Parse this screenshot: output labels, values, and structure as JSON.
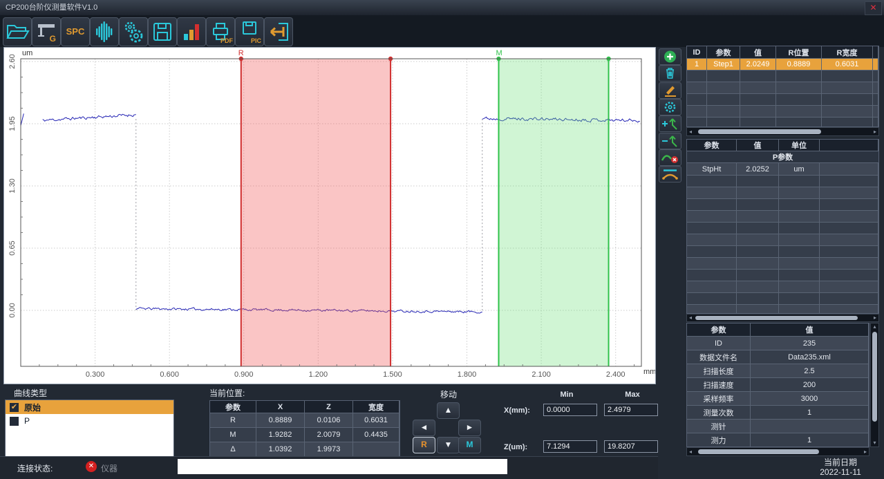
{
  "titlebar": {
    "title": "CP200台阶仪测量软件V1.0"
  },
  "icons": {
    "close": "✕",
    "check": "✔",
    "up": "▲",
    "down": "▼",
    "left": "◄",
    "right": "►",
    "sb_left": "◂",
    "sb_right": "▸",
    "sb_up": "▴",
    "sb_down": "▾",
    "status_fail": "✕"
  },
  "colors": {
    "accent_cyan": "#2bc8da",
    "accent_orange": "#e09a30",
    "highlight_row": "#e8a23c",
    "status_red": "#d42020",
    "curve_blue": "#2424b4",
    "region_r": "#d03030",
    "region_m": "#2fc24a"
  },
  "toolbar": {
    "buttons": [
      {
        "name": "open-file",
        "label": ""
      },
      {
        "name": "probe-config",
        "label": "G"
      },
      {
        "name": "spc",
        "label": "SPC"
      },
      {
        "name": "waveform",
        "label": ""
      },
      {
        "name": "settings",
        "label": ""
      },
      {
        "name": "save",
        "label": ""
      },
      {
        "name": "statistics",
        "label": ""
      },
      {
        "name": "print-pdf",
        "label": "PDF"
      },
      {
        "name": "save-pic",
        "label": "PIC"
      },
      {
        "name": "exit",
        "label": ""
      }
    ]
  },
  "chart_data": {
    "type": "line",
    "title": "",
    "x_unit": "mm",
    "y_unit": "um",
    "xlim": [
      0,
      2.504
    ],
    "ylim": [
      -0.585,
      2.636
    ],
    "grid": true,
    "x_ticks": [
      "0.300",
      "0.600",
      "0.900",
      "1.200",
      "1.500",
      "1.800",
      "2.100",
      "2.400"
    ],
    "x_tick_values": [
      0.3,
      0.6,
      0.9,
      1.2,
      1.5,
      1.8,
      2.1,
      2.4
    ],
    "y_ticks": [
      "0.00",
      "0.65",
      "1.30",
      "1.95",
      "2.60"
    ],
    "y_tick_values": [
      0,
      0.65,
      1.3,
      1.95,
      2.6
    ],
    "series_name": "原始",
    "line_color": "#2424b4",
    "step_height_um": 2.0252,
    "profile_segments": [
      {
        "x_start": 0.0,
        "x_end": 0.012,
        "z_start": 1.93,
        "z_end": 2.05,
        "noise": 0.02
      },
      {
        "x_start": 0.088,
        "x_end": 0.465,
        "z_start": 1.985,
        "z_end": 2.045,
        "noise": 0.016
      },
      {
        "x_start": 0.465,
        "x_end": 1.862,
        "z_start": 0.018,
        "z_end": -0.015,
        "noise": 0.012
      },
      {
        "x_start": 1.862,
        "x_end": 2.498,
        "z_start": 2.005,
        "z_end": 1.985,
        "noise": 0.016
      }
    ],
    "step_connectors_x": [
      0.465,
      1.862
    ],
    "regions": [
      {
        "label": "R",
        "x_start": 0.8889,
        "width": 0.6031,
        "line_color": "#d03030",
        "fill_color": "rgba(240,90,90,0.35)"
      },
      {
        "label": "M",
        "x_start": 1.9282,
        "width": 0.4435,
        "line_color": "#2fc24a",
        "fill_color": "rgba(110,225,120,0.32)"
      }
    ]
  },
  "results_table": {
    "headers": [
      "ID",
      "参数",
      "值",
      "R位置",
      "R宽度"
    ],
    "rows": [
      [
        "1",
        "Step1",
        "2.0249",
        "0.8889",
        "0.6031"
      ]
    ]
  },
  "param_table": {
    "headers": [
      "参数",
      "值",
      "单位"
    ],
    "group_label": "P参数",
    "rows": [
      [
        "StpHt",
        "2.0252",
        "um"
      ]
    ]
  },
  "info_table": {
    "headers": [
      "参数",
      "值"
    ],
    "rows": [
      [
        "ID",
        "235"
      ],
      [
        "数据文件名",
        "Data235.xml"
      ],
      [
        "扫描长度",
        "2.5"
      ],
      [
        "扫描速度",
        "200"
      ],
      [
        "采样频率",
        "3000"
      ],
      [
        "测量次数",
        "1"
      ],
      [
        "测针",
        ""
      ],
      [
        "测力",
        "1"
      ]
    ]
  },
  "curve_type": {
    "label": "曲线类型",
    "items": [
      {
        "label": "原始",
        "checked": true
      },
      {
        "label": "P",
        "checked": false
      }
    ]
  },
  "current_position": {
    "label": "当前位置:",
    "headers": [
      "参数",
      "X",
      "Z",
      "宽度"
    ],
    "rows": [
      [
        "R",
        "0.8889",
        "0.0106",
        "0.6031"
      ],
      [
        "M",
        "1.9282",
        "2.0079",
        "0.4435"
      ],
      [
        "Δ",
        "1.0392",
        "1.9973",
        ""
      ]
    ]
  },
  "move": {
    "label": "移动",
    "r_label": "R",
    "m_label": "M"
  },
  "range": {
    "min_label": "Min",
    "max_label": "Max",
    "x_label": "X(mm):",
    "z_label": "Z(um):",
    "x_min": "0.0000",
    "x_max": "2.4979",
    "z_min": "7.1294",
    "z_max": "19.8207"
  },
  "status": {
    "label": "连接状态:",
    "device_label": "仪器",
    "input_value": ""
  },
  "footer": {
    "date_label": "当前日期",
    "date_value": "2022-11-11"
  }
}
